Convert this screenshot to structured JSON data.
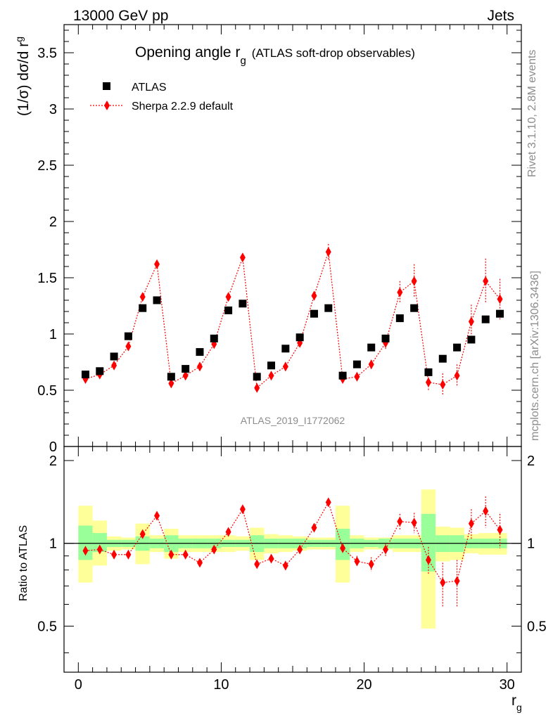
{
  "header": {
    "left_label": "13000 GeV pp",
    "right_label": "Jets"
  },
  "plot_title": {
    "main": "Opening angle r",
    "sub": "g",
    "suffix": "(ATLAS soft-drop observables)"
  },
  "side_labels": {
    "rivet": "Rivet 3.1.10,  2.8M events",
    "mcplots": "mcplots.cern.ch [arXiv:1306.3436]"
  },
  "watermark": "ATLAS_2019_I1772062",
  "legend": {
    "data_label": "ATLAS",
    "mc_label": "Sherpa 2.2.9 default"
  },
  "colors": {
    "data": "#000000",
    "mc": "#ff0000",
    "band_inner": "#99ff99",
    "band_outer": "#ffff99"
  },
  "chart_data": [
    {
      "type": "scatter",
      "panel": "main",
      "ylabel": "(1/σ) dσ/d r",
      "ylabel_sub": "g",
      "xlim": [
        -1,
        31
      ],
      "ylim": [
        0,
        3.75
      ],
      "y_ticks": [
        "0",
        "0.5",
        "1",
        "1.5",
        "2",
        "2.5",
        "3",
        "3.5"
      ],
      "y_tick_values": [
        0,
        0.5,
        1,
        1.5,
        2,
        2.5,
        3,
        3.5
      ],
      "x": [
        0.5,
        1.5,
        2.5,
        3.5,
        4.5,
        5.5,
        6.5,
        7.5,
        8.5,
        9.5,
        10.5,
        11.5,
        12.5,
        13.5,
        14.5,
        15.5,
        16.5,
        17.5,
        18.5,
        19.5,
        20.5,
        21.5,
        22.5,
        23.5,
        24.5,
        25.5,
        26.5,
        27.5,
        28.5,
        29.5
      ],
      "series": [
        {
          "name": "ATLAS",
          "values": [
            0.64,
            0.67,
            0.8,
            0.98,
            1.23,
            1.3,
            0.62,
            0.69,
            0.84,
            0.96,
            1.21,
            1.27,
            0.62,
            0.72,
            0.87,
            0.97,
            1.18,
            1.23,
            0.63,
            0.73,
            0.88,
            0.96,
            1.14,
            1.23,
            0.66,
            0.78,
            0.88,
            0.95,
            1.13,
            1.18
          ]
        },
        {
          "name": "Sherpa 2.2.9 default",
          "values": [
            0.6,
            0.64,
            0.72,
            0.89,
            1.33,
            1.62,
            0.56,
            0.63,
            0.71,
            0.91,
            1.33,
            1.68,
            0.52,
            0.63,
            0.71,
            0.92,
            1.34,
            1.73,
            0.6,
            0.62,
            0.73,
            0.92,
            1.37,
            1.47,
            0.57,
            0.55,
            0.63,
            1.11,
            1.47,
            1.31
          ],
          "errors": [
            0.01,
            0.01,
            0.01,
            0.01,
            0.02,
            0.02,
            0.01,
            0.01,
            0.01,
            0.02,
            0.03,
            0.03,
            0.01,
            0.02,
            0.02,
            0.02,
            0.04,
            0.07,
            0.02,
            0.03,
            0.04,
            0.06,
            0.1,
            0.15,
            0.07,
            0.1,
            0.1,
            0.15,
            0.2,
            0.18
          ]
        }
      ]
    },
    {
      "type": "scatter",
      "panel": "ratio",
      "ylabel": "Ratio to ATLAS",
      "xlabel": "r",
      "xlabel_sub": "g",
      "xlim": [
        -1,
        31
      ],
      "ylim": [
        0.34,
        2.25
      ],
      "x_ticks": [
        "0",
        "10",
        "20",
        "30"
      ],
      "x_tick_values": [
        0,
        10,
        20,
        30
      ],
      "y_ticks": [
        "0.5",
        "1",
        "2"
      ],
      "y_tick_values": [
        0.5,
        1,
        2
      ],
      "x": [
        0.5,
        1.5,
        2.5,
        3.5,
        4.5,
        5.5,
        6.5,
        7.5,
        8.5,
        9.5,
        10.5,
        11.5,
        12.5,
        13.5,
        14.5,
        15.5,
        16.5,
        17.5,
        18.5,
        19.5,
        20.5,
        21.5,
        22.5,
        23.5,
        24.5,
        25.5,
        26.5,
        27.5,
        28.5,
        29.5
      ],
      "band_inner_lo": [
        0.87,
        0.93,
        0.97,
        0.97,
        0.94,
        0.96,
        0.93,
        0.96,
        0.96,
        0.96,
        0.97,
        0.97,
        0.93,
        0.96,
        0.96,
        0.96,
        0.97,
        0.97,
        0.87,
        0.96,
        0.97,
        0.96,
        0.96,
        0.96,
        0.79,
        0.93,
        0.93,
        0.96,
        0.96,
        0.96
      ],
      "band_inner_hi": [
        1.16,
        1.09,
        1.03,
        1.03,
        1.06,
        1.04,
        1.07,
        1.04,
        1.04,
        1.04,
        1.03,
        1.03,
        1.07,
        1.04,
        1.04,
        1.04,
        1.03,
        1.03,
        1.13,
        1.04,
        1.03,
        1.04,
        1.04,
        1.04,
        1.28,
        1.07,
        1.07,
        1.04,
        1.04,
        1.04
      ],
      "band_outer_lo": [
        0.72,
        0.83,
        0.94,
        0.95,
        0.84,
        0.93,
        0.88,
        0.93,
        0.93,
        0.93,
        0.93,
        0.94,
        0.87,
        0.92,
        0.93,
        0.94,
        0.95,
        0.95,
        0.72,
        0.93,
        0.95,
        0.95,
        0.93,
        0.93,
        0.49,
        0.86,
        0.87,
        0.92,
        0.91,
        0.91
      ],
      "band_outer_hi": [
        1.37,
        1.21,
        1.06,
        1.05,
        1.18,
        1.07,
        1.13,
        1.07,
        1.07,
        1.07,
        1.07,
        1.06,
        1.14,
        1.08,
        1.07,
        1.06,
        1.05,
        1.05,
        1.37,
        1.07,
        1.05,
        1.05,
        1.07,
        1.07,
        1.57,
        1.15,
        1.14,
        1.08,
        1.09,
        1.09
      ],
      "series": [
        {
          "name": "Sherpa 2.2.9 default",
          "values": [
            0.94,
            0.95,
            0.91,
            0.91,
            1.08,
            1.26,
            0.91,
            0.91,
            0.85,
            0.95,
            1.1,
            1.33,
            0.84,
            0.88,
            0.83,
            0.95,
            1.14,
            1.41,
            0.96,
            0.86,
            0.84,
            0.95,
            1.2,
            1.19,
            0.87,
            0.72,
            0.73,
            1.18,
            1.31,
            1.12
          ],
          "errors": [
            0.01,
            0.01,
            0.01,
            0.01,
            0.02,
            0.02,
            0.02,
            0.02,
            0.02,
            0.02,
            0.02,
            0.02,
            0.03,
            0.03,
            0.03,
            0.03,
            0.03,
            0.04,
            0.03,
            0.04,
            0.05,
            0.05,
            0.08,
            0.1,
            0.1,
            0.13,
            0.14,
            0.15,
            0.17,
            0.16
          ]
        }
      ]
    }
  ]
}
